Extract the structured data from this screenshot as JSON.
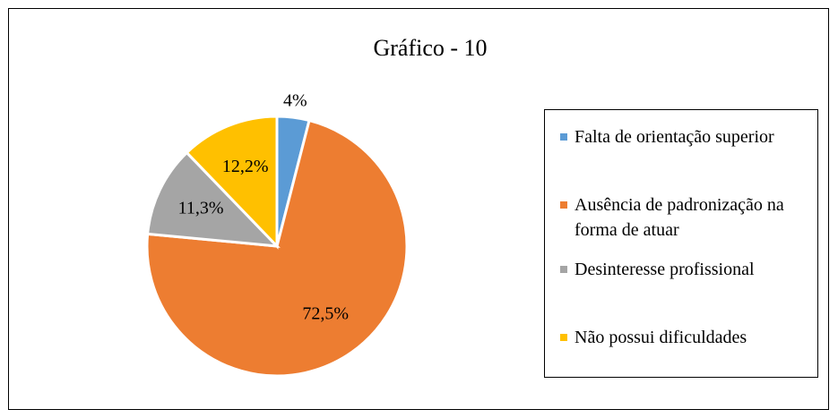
{
  "chart_data": {
    "type": "pie",
    "title": "Gráfico - 10",
    "categories": [
      "Falta de orientação superior",
      "Ausência de padronização na forma de atuar",
      "Desinteresse profissional",
      "Não possui dificuldades"
    ],
    "values": [
      4,
      72.5,
      11.3,
      12.2
    ],
    "value_labels": [
      "4%",
      "72,5%",
      "11,3%",
      "12,2%"
    ],
    "colors": [
      "#5b9bd5",
      "#ed7d31",
      "#a5a5a5",
      "#ffc000"
    ],
    "legend": "right"
  }
}
